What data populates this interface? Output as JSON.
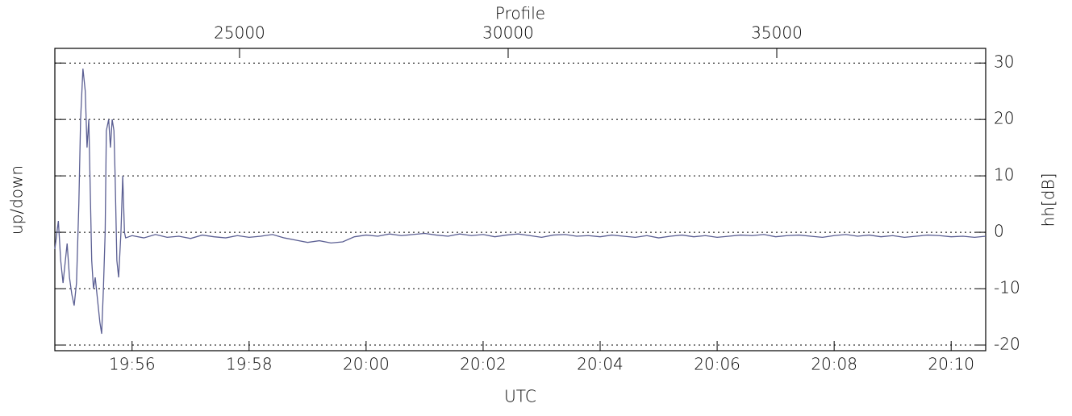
{
  "chart_data": {
    "type": "line",
    "x_label": "UTC",
    "x2_label": "Profile",
    "y_label": "up/down",
    "y2_label": "hh[dB]",
    "xlim": [
      1194.68,
      1210.59
    ],
    "xticks": [
      {
        "value": 1196,
        "label": "19:56"
      },
      {
        "value": 1198,
        "label": "19:58"
      },
      {
        "value": 1200,
        "label": "20:00"
      },
      {
        "value": 1202,
        "label": "20:02"
      },
      {
        "value": 1204,
        "label": "20:04"
      },
      {
        "value": 1206,
        "label": "20:06"
      },
      {
        "value": 1208,
        "label": "20:08"
      },
      {
        "value": 1210,
        "label": "20:10"
      }
    ],
    "x2lim": [
      21562,
      38889
    ],
    "x2ticks": [
      25000,
      30000,
      35000
    ],
    "y2lim": [
      -21,
      32.6
    ],
    "y2ticks": [
      -20,
      -10,
      0,
      10,
      20,
      30
    ],
    "grid": true,
    "series": [
      {
        "color": "#5b5f93",
        "axis": "y2",
        "x": [
          1194.68,
          1194.74,
          1194.78,
          1194.82,
          1194.85,
          1194.89,
          1194.93,
          1194.97,
          1195.01,
          1195.05,
          1195.09,
          1195.12,
          1195.16,
          1195.2,
          1195.23,
          1195.26,
          1195.29,
          1195.31,
          1195.34,
          1195.37,
          1195.41,
          1195.45,
          1195.48,
          1195.51,
          1195.54,
          1195.56,
          1195.6,
          1195.63,
          1195.66,
          1195.69,
          1195.71,
          1195.74,
          1195.77,
          1195.81,
          1195.84,
          1195.87,
          1195.89,
          1196.0,
          1196.2,
          1196.4,
          1196.6,
          1196.8,
          1197.0,
          1197.2,
          1197.4,
          1197.6,
          1197.8,
          1198.0,
          1198.2,
          1198.4,
          1198.6,
          1198.8,
          1199.0,
          1199.2,
          1199.4,
          1199.6,
          1199.8,
          1200.0,
          1200.2,
          1200.4,
          1200.6,
          1200.8,
          1201.0,
          1201.2,
          1201.4,
          1201.6,
          1201.8,
          1202.0,
          1202.2,
          1202.4,
          1202.6,
          1202.8,
          1203.0,
          1203.2,
          1203.4,
          1203.6,
          1203.8,
          1204.0,
          1204.2,
          1204.4,
          1204.6,
          1204.8,
          1205.0,
          1205.2,
          1205.4,
          1205.6,
          1205.8,
          1206.0,
          1206.2,
          1206.4,
          1206.6,
          1206.8,
          1207.0,
          1207.2,
          1207.4,
          1207.6,
          1207.8,
          1208.0,
          1208.2,
          1208.4,
          1208.6,
          1208.8,
          1209.0,
          1209.2,
          1209.4,
          1209.6,
          1209.8,
          1210.0,
          1210.2,
          1210.4,
          1210.59
        ],
        "values": [
          -3,
          2,
          -5,
          -9,
          -6,
          -2,
          -8,
          -11,
          -13,
          -9,
          5,
          20,
          29,
          25,
          15,
          20,
          5,
          -5,
          -10,
          -8,
          -12,
          -16,
          -18,
          -10,
          0,
          18,
          20,
          15,
          20,
          18,
          10,
          -5,
          -8,
          0,
          10,
          0,
          -1,
          -0.6,
          -1.0,
          -0.4,
          -0.9,
          -0.7,
          -1.1,
          -0.5,
          -0.8,
          -1.0,
          -0.6,
          -0.9,
          -0.7,
          -0.4,
          -1.0,
          -1.4,
          -1.8,
          -1.5,
          -1.9,
          -1.7,
          -0.8,
          -0.5,
          -0.7,
          -0.3,
          -0.6,
          -0.4,
          -0.2,
          -0.5,
          -0.7,
          -0.3,
          -0.6,
          -0.4,
          -0.8,
          -0.5,
          -0.3,
          -0.6,
          -0.9,
          -0.5,
          -0.4,
          -0.7,
          -0.6,
          -0.8,
          -0.5,
          -0.7,
          -0.9,
          -0.6,
          -1.0,
          -0.7,
          -0.5,
          -0.8,
          -0.6,
          -0.9,
          -0.7,
          -0.5,
          -0.6,
          -0.4,
          -0.8,
          -0.6,
          -0.5,
          -0.7,
          -0.9,
          -0.6,
          -0.4,
          -0.7,
          -0.5,
          -0.8,
          -0.6,
          -0.9,
          -0.7,
          -0.5,
          -0.6,
          -0.8,
          -0.7,
          -0.9,
          -0.7
        ]
      }
    ]
  }
}
